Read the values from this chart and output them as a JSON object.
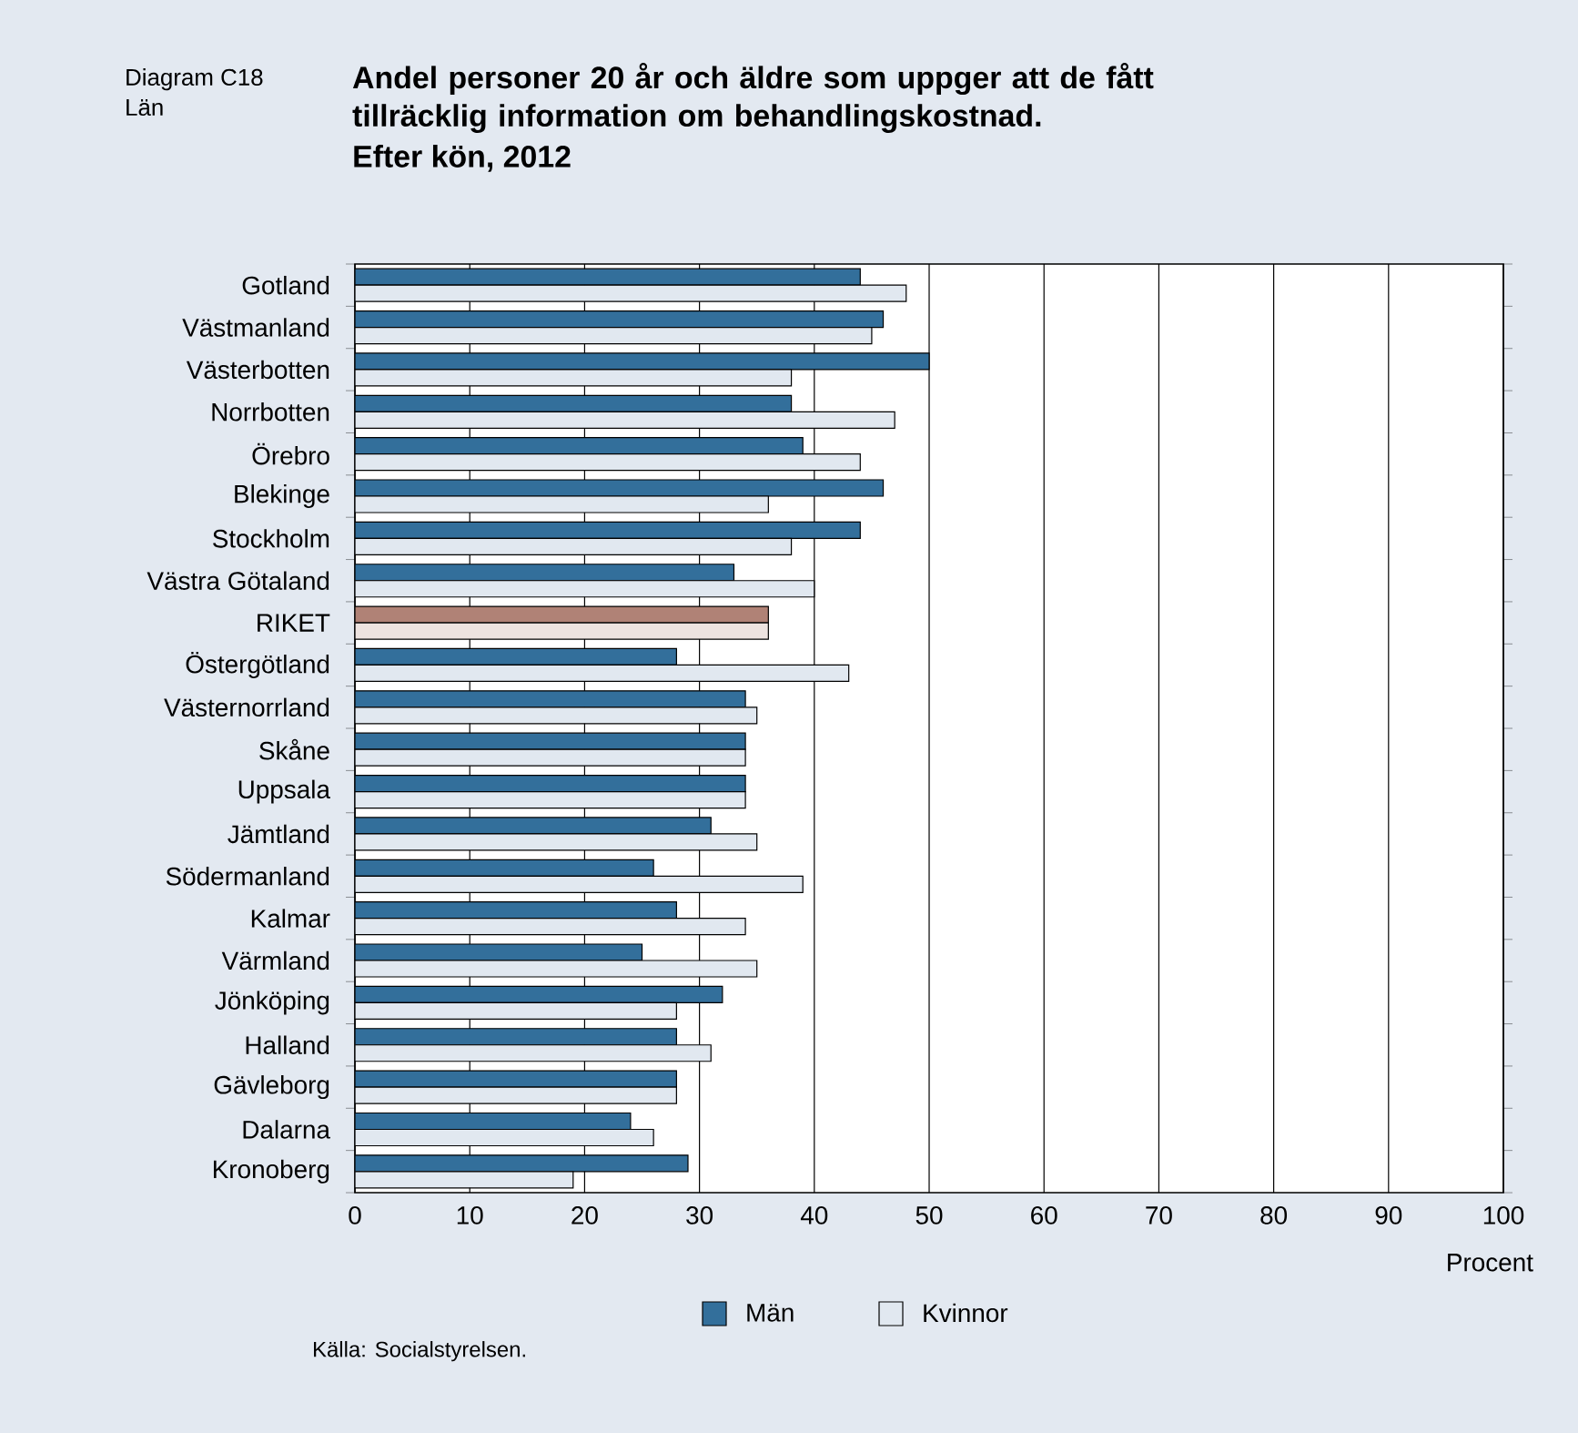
{
  "chart_data": {
    "type": "bar",
    "orientation": "horizontal",
    "title": "Andel personer 20 år och äldre som uppger att de fått tillräcklig information om behandlingskostnad.",
    "subtitle": "Efter kön, 2012",
    "xlabel": "Procent",
    "annotations": [
      "Diagram C18",
      "Län",
      "Källa: Socialstyrelsen."
    ],
    "categories": [
      "Gotland",
      "Västmanland",
      "Västerbotten",
      "Norrbotten",
      "Örebro",
      "Blekinge",
      "Stockholm",
      "Västra Götaland",
      "RIKET",
      "Östergötland",
      "Västernorrland",
      "Skåne",
      "Uppsala",
      "Jämtland",
      "Södermanland",
      "Kalmar",
      "Värmland",
      "Jönköping",
      "Halland",
      "Gävleborg",
      "Dalarna",
      "Kronoberg"
    ],
    "series": [
      {
        "name": "Män",
        "color": "#336f9b",
        "colors": [
          "#336f9b",
          "#336f9b",
          "#336f9b",
          "#336f9b",
          "#336f9b",
          "#336f9b",
          "#336f9b",
          "#336f9b",
          "#b08276",
          "#336f9b",
          "#336f9b",
          "#336f9b",
          "#336f9b",
          "#336f9b",
          "#336f9b",
          "#336f9b",
          "#336f9b",
          "#336f9b",
          "#336f9b",
          "#336f9b",
          "#336f9b",
          "#336f9b"
        ],
        "values": [
          44,
          46,
          50,
          38,
          39,
          46,
          44,
          33,
          36,
          28,
          34,
          34,
          34,
          31,
          26,
          28,
          25,
          32,
          28,
          28,
          24,
          29
        ]
      },
      {
        "name": "Kvinnor",
        "color": "#e1e8f0",
        "colors": [
          "#e1e8f0",
          "#e1e8f0",
          "#e1e8f0",
          "#e1e8f0",
          "#e1e8f0",
          "#e1e8f0",
          "#e1e8f0",
          "#e1e8f0",
          "#ede3e0",
          "#e1e8f0",
          "#e1e8f0",
          "#e1e8f0",
          "#e1e8f0",
          "#e1e8f0",
          "#e1e8f0",
          "#e1e8f0",
          "#e1e8f0",
          "#e1e8f0",
          "#e1e8f0",
          "#e1e8f0",
          "#e1e8f0",
          "#e1e8f0"
        ],
        "values": [
          48,
          45,
          38,
          47,
          44,
          36,
          38,
          40,
          36,
          43,
          35,
          34,
          34,
          35,
          39,
          34,
          35,
          28,
          31,
          28,
          26,
          19
        ]
      }
    ],
    "xlim": [
      0,
      100
    ],
    "xticks": [
      0,
      10,
      20,
      30,
      40,
      50,
      60,
      70,
      80,
      90,
      100
    ],
    "grid": "x",
    "legend": "bottom"
  }
}
